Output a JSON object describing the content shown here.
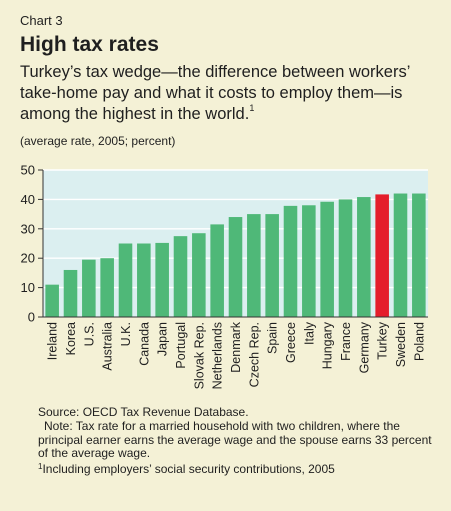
{
  "header": {
    "label": "Chart 3",
    "title": "High tax rates",
    "subtitle": "Turkey’s tax wedge—the difference between workers’ take-home pay and what it costs to employ them—is among the highest in the world.",
    "subtitle_footnote_mark": "1",
    "units": "(average rate, 2005; percent)"
  },
  "footer": {
    "source": "Source: OECD Tax Revenue Database.",
    "note": "Note: Tax rate for a married household with two children, where the principal earner earns the average wage and the spouse earns 33 percent of the average wage.",
    "footnote_mark": "1",
    "footnote": "Including employers’ social security contributions, 2005"
  },
  "colors": {
    "background": "#f4f1d6",
    "plot_background": "#dbeff0",
    "bar": "#4fb878",
    "highlight": "#e41e2b",
    "grid": "#ffffff"
  },
  "chart_data": {
    "type": "bar",
    "categories": [
      "Ireland",
      "Korea",
      "U.S.",
      "Australia",
      "U.K.",
      "Canada",
      "Japan",
      "Portugal",
      "Slovak Rep.",
      "Netherlands",
      "Denmark",
      "Czech Rep.",
      "Spain",
      "Greece",
      "Italy",
      "Hungary",
      "France",
      "Germany",
      "Turkey",
      "Sweden",
      "Poland"
    ],
    "values": [
      11,
      16,
      19.5,
      20,
      25,
      25,
      25.2,
      27.5,
      28.5,
      31.5,
      34,
      35,
      35,
      37.8,
      38,
      39.2,
      40,
      40.8,
      41.7,
      42,
      42
    ],
    "highlight": "Turkey",
    "yticks": [
      0,
      10,
      20,
      30,
      40,
      50
    ],
    "ylim": [
      0,
      50
    ],
    "grid": true,
    "xlabel": "",
    "ylabel": ""
  }
}
